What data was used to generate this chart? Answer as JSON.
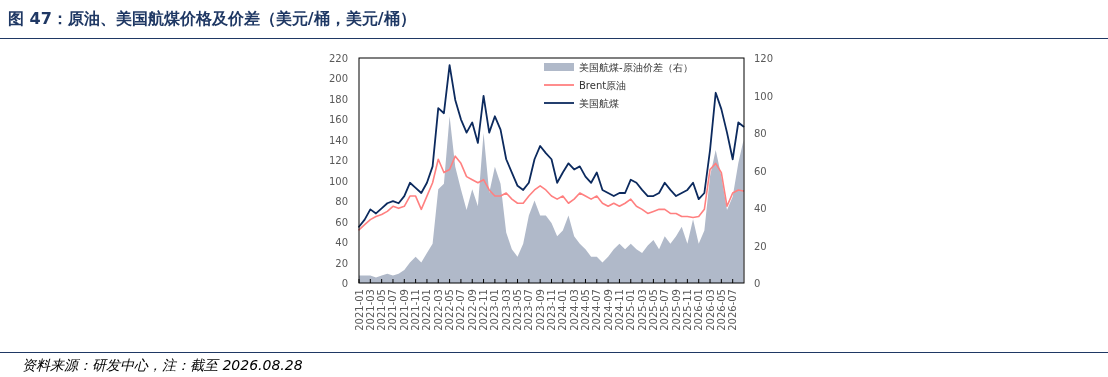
{
  "chart_data": {
    "type": "line",
    "title": "图 47：原油、美国航煤价格及价差（美元/桶，美元/桶）",
    "annotations": [
      "资料来源：研发中心，注：截至 2026.08.28"
    ],
    "x": [
      "2021-01",
      "2021-02",
      "2021-03",
      "2021-04",
      "2021-05",
      "2021-06",
      "2021-07",
      "2021-08",
      "2021-09",
      "2021-10",
      "2021-11",
      "2021-12",
      "2022-01",
      "2022-02",
      "2022-03",
      "2022-04",
      "2022-05",
      "2022-06",
      "2022-07",
      "2022-08",
      "2022-09",
      "2022-10",
      "2022-11",
      "2022-12",
      "2023-01",
      "2023-02",
      "2023-03",
      "2023-04",
      "2023-05",
      "2023-06",
      "2023-07",
      "2023-08",
      "2023-09",
      "2023-10",
      "2023-11",
      "2023-12",
      "2024-01",
      "2024-02",
      "2024-03",
      "2024-04",
      "2024-05",
      "2024-06",
      "2024-07",
      "2024-08",
      "2024-09",
      "2024-10",
      "2024-11",
      "2024-12",
      "2025-01",
      "2025-02",
      "2025-03",
      "2025-04",
      "2025-05",
      "2025-06",
      "2025-07",
      "2025-08",
      "2025-09",
      "2025-10",
      "2025-11",
      "2025-12",
      "2026-01",
      "2026-02",
      "2026-03",
      "2026-04",
      "2026-05",
      "2026-06",
      "2026-07",
      "2026-08",
      "2026-08-28"
    ],
    "xlim": [
      "2021-01",
      "2026-09"
    ],
    "xticks": [
      "2021-01",
      "2021-03",
      "2021-05",
      "2021-07",
      "2021-09",
      "2021-11",
      "2022-01",
      "2022-03",
      "2022-05",
      "2022-07",
      "2022-09",
      "2022-11",
      "2023-01",
      "2023-03",
      "2023-05",
      "2023-07",
      "2023-09",
      "2023-11",
      "2024-01",
      "2024-03",
      "2024-05",
      "2024-07",
      "2024-09",
      "2024-11",
      "2025-01",
      "2025-03",
      "2025-05",
      "2025-07",
      "2025-09",
      "2025-11",
      "2026-01",
      "2026-03",
      "2026-05",
      "2026-07"
    ],
    "ylim": [
      0,
      220
    ],
    "yticks": [
      0,
      20,
      40,
      60,
      80,
      100,
      120,
      140,
      160,
      180,
      200,
      220
    ],
    "y2lim": [
      0,
      120
    ],
    "y2ticks": [
      0,
      20,
      40,
      60,
      80,
      100,
      120
    ],
    "legend": "top right",
    "series": [
      {
        "name": "美国航煤-原油价差（右）",
        "type": "area",
        "axis": "y2",
        "color": "#b0b9c9",
        "values": [
          4,
          4,
          4,
          3,
          4,
          5,
          4,
          5,
          7,
          11,
          14,
          11,
          16,
          21,
          50,
          53,
          89,
          62,
          50,
          39,
          50,
          41,
          80,
          48,
          62,
          53,
          27,
          18,
          14,
          21,
          36,
          44,
          36,
          36,
          32,
          25,
          28,
          36,
          25,
          21,
          18,
          14,
          14,
          11,
          14,
          18,
          21,
          18,
          21,
          18,
          16,
          20,
          23,
          18,
          25,
          21,
          25,
          30,
          21,
          34,
          21,
          28,
          57,
          71,
          57,
          39,
          46,
          64,
          76
        ]
      },
      {
        "name": "Brent原油",
        "color": "#ff8080",
        "values": [
          52,
          57,
          62,
          65,
          67,
          70,
          75,
          73,
          75,
          85,
          85,
          72,
          85,
          98,
          121,
          108,
          111,
          124,
          117,
          104,
          101,
          98,
          101,
          91,
          85,
          85,
          88,
          82,
          78,
          78,
          85,
          91,
          95,
          91,
          85,
          82,
          85,
          78,
          82,
          88,
          85,
          82,
          85,
          78,
          75,
          78,
          75,
          78,
          82,
          75,
          72,
          68,
          70,
          72,
          72,
          68,
          68,
          65,
          65,
          64,
          65,
          72,
          111,
          117,
          108,
          75,
          88,
          91,
          90
        ]
      },
      {
        "name": "美国航煤",
        "color": "#0c2a5e",
        "values": [
          55,
          62,
          72,
          68,
          73,
          78,
          80,
          78,
          85,
          98,
          93,
          88,
          98,
          114,
          171,
          166,
          213,
          179,
          160,
          147,
          157,
          137,
          183,
          147,
          163,
          150,
          121,
          108,
          95,
          91,
          98,
          121,
          134,
          127,
          121,
          98,
          108,
          117,
          111,
          114,
          104,
          98,
          108,
          91,
          88,
          85,
          88,
          88,
          101,
          98,
          91,
          85,
          85,
          88,
          98,
          91,
          85,
          88,
          91,
          98,
          82,
          88,
          130,
          186,
          170,
          147,
          121,
          157,
          153
        ]
      }
    ]
  }
}
